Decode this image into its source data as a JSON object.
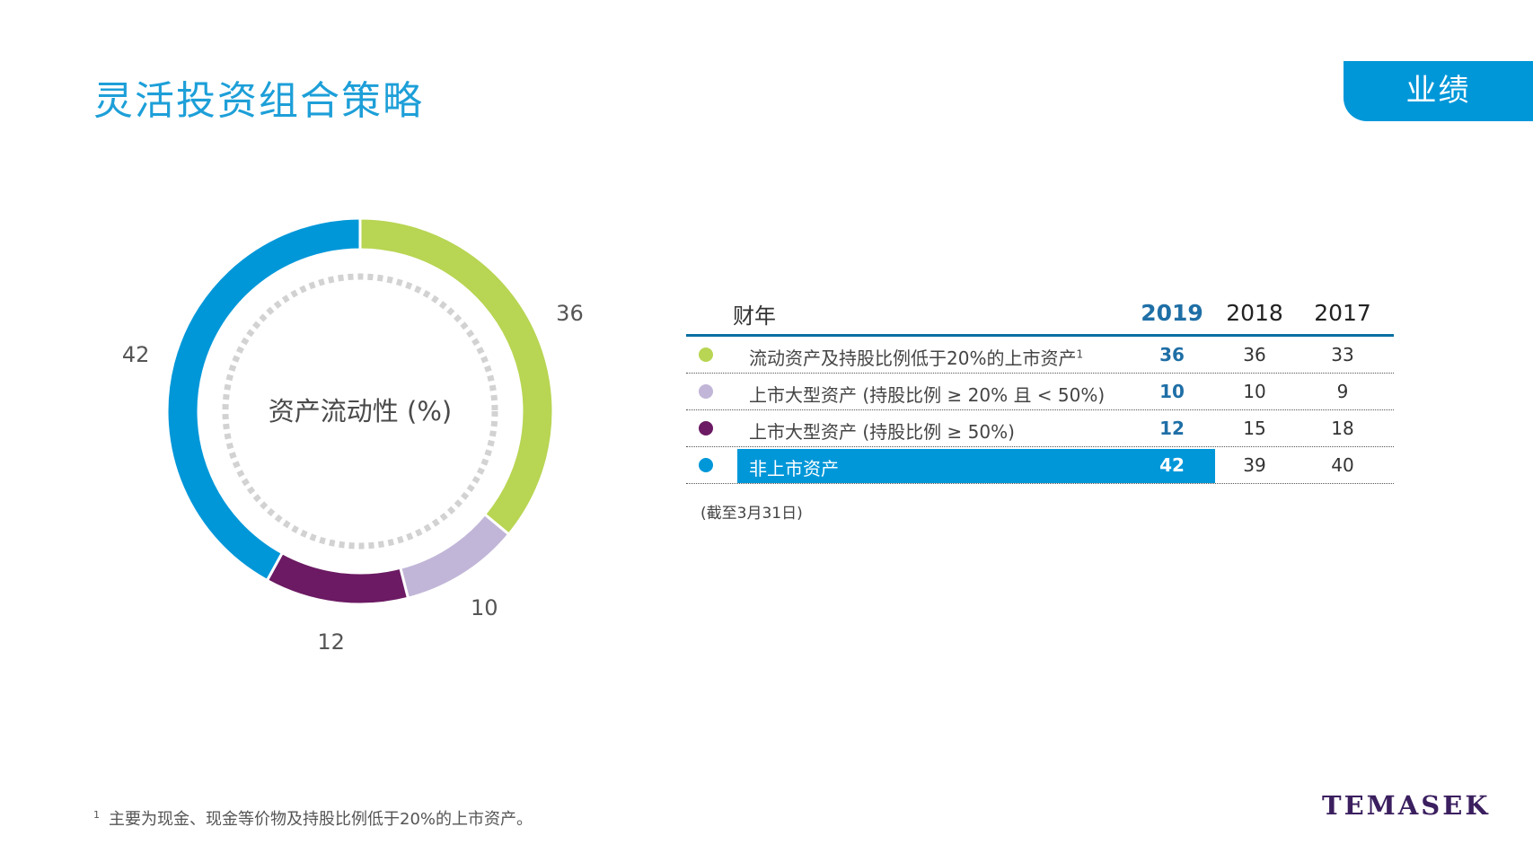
{
  "page": {
    "title": "灵活投资组合策略",
    "section_tab": "业绩",
    "footnote_marker": "1",
    "footnote": "主要为现金、现金等价物及持股比例低于20%的上市资产。",
    "brand": "TEMASEK"
  },
  "chart_data": {
    "type": "pie",
    "title": "资产流动性 (%)",
    "categories": [
      "流动资产及持股比例低于20%的上市资产",
      "上市大型资产 (持股比例 ≥ 20% 且 < 50%)",
      "上市大型资产 (持股比例 ≥ 50%)",
      "非上市资产"
    ],
    "values": [
      36,
      10,
      12,
      42
    ],
    "colors": [
      "#b8d553",
      "#c1b6d8",
      "#6b1a63",
      "#0097d9"
    ],
    "donut": true
  },
  "table": {
    "header": {
      "label": "财年",
      "years": [
        "2019",
        "2018",
        "2017"
      ]
    },
    "rows": [
      {
        "label": "流动资产及持股比例低于20%的上市资产",
        "note_marker": "1",
        "color": "#b8d553",
        "values": [
          "36",
          "36",
          "33"
        ]
      },
      {
        "label": "上市大型资产 (持股比例  ≥ 20% 且 < 50%)",
        "color": "#c1b6d8",
        "values": [
          "10",
          "10",
          "9"
        ]
      },
      {
        "label": "上市大型资产 (持股比例 ≥ 50%)",
        "color": "#6b1a63",
        "values": [
          "12",
          "15",
          "18"
        ]
      },
      {
        "label": "非上市资产",
        "color": "#0097d9",
        "values": [
          "42",
          "39",
          "40"
        ],
        "highlight": true
      }
    ],
    "note": "(截至3月31日)"
  }
}
